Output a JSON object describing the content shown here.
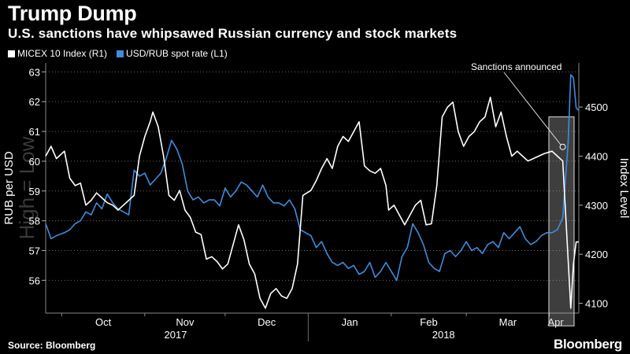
{
  "header": {
    "title": "Trump Dump",
    "subtitle": "U.S. sanctions have whipsawed Russian currency and stock markets"
  },
  "footer": {
    "source": "Source: Bloomberg",
    "brand": "Bloomberg"
  },
  "colors": {
    "micex": "#ffffff",
    "usdrub": "#3f8ddb",
    "highlight": "#b3b3b3",
    "grid": "#666666"
  },
  "chart_data": {
    "type": "line",
    "title": "Trump Dump",
    "subtitle": "U.S. sanctions have whipsawed Russian currency and stock markets",
    "ylabel_left": "RUB per USD",
    "ylabel_right": "Index Level",
    "ylabel_left_watermark": "High = Low",
    "ylim_left": [
      63.3,
      54.9
    ],
    "ylim_right": [
      4080,
      4590
    ],
    "yticks_left": [
      56,
      57,
      58,
      59,
      60,
      61,
      62,
      63
    ],
    "yticks_right": [
      4100,
      4200,
      4300,
      4400,
      4500
    ],
    "x_range": [
      "2017-09-25",
      "2018-04-12"
    ],
    "month_ticks": [
      {
        "label": "Oct",
        "date": "2017-10-01"
      },
      {
        "label": "Nov",
        "date": "2017-11-01"
      },
      {
        "label": "Dec",
        "date": "2017-12-01"
      },
      {
        "label": "Jan",
        "date": "2018-01-01"
      },
      {
        "label": "Feb",
        "date": "2018-02-01"
      },
      {
        "label": "Mar",
        "date": "2018-03-01"
      },
      {
        "label": "Apr",
        "date": "2018-04-01"
      }
    ],
    "years": [
      {
        "label": "2017",
        "from": "2017-09-25",
        "to": "2017-12-31"
      },
      {
        "label": "2018",
        "from": "2018-01-01",
        "to": "2018-04-12"
      }
    ],
    "grid": "dotted horizontal",
    "legend": "top-left",
    "annotation": {
      "text": "Sanctions announced",
      "date": "2018-04-06",
      "micex_value": 4390,
      "highlight_from": "2018-04-02",
      "highlight_to": "2018-04-12"
    },
    "series": [
      {
        "name": "MICEX 10 Index (R1)",
        "axis": "right",
        "points": [
          [
            "2017-09-25",
            4400
          ],
          [
            "2017-09-27",
            4420
          ],
          [
            "2017-09-29",
            4395
          ],
          [
            "2017-10-02",
            4410
          ],
          [
            "2017-10-04",
            4355
          ],
          [
            "2017-10-06",
            4340
          ],
          [
            "2017-10-08",
            4345
          ],
          [
            "2017-10-10",
            4300
          ],
          [
            "2017-10-12",
            4310
          ],
          [
            "2017-10-14",
            4325
          ],
          [
            "2017-10-16",
            4315
          ],
          [
            "2017-10-18",
            4305
          ],
          [
            "2017-10-20",
            4300
          ],
          [
            "2017-10-22",
            4290
          ],
          [
            "2017-10-24",
            4300
          ],
          [
            "2017-10-26",
            4310
          ],
          [
            "2017-10-28",
            4320
          ],
          [
            "2017-10-30",
            4400
          ],
          [
            "2017-11-01",
            4440
          ],
          [
            "2017-11-03",
            4470
          ],
          [
            "2017-11-04",
            4490
          ],
          [
            "2017-11-06",
            4460
          ],
          [
            "2017-11-08",
            4400
          ],
          [
            "2017-11-10",
            4320
          ],
          [
            "2017-11-12",
            4310
          ],
          [
            "2017-11-14",
            4330
          ],
          [
            "2017-11-16",
            4290
          ],
          [
            "2017-11-18",
            4275
          ],
          [
            "2017-11-20",
            4245
          ],
          [
            "2017-11-22",
            4240
          ],
          [
            "2017-11-24",
            4190
          ],
          [
            "2017-11-26",
            4195
          ],
          [
            "2017-11-28",
            4185
          ],
          [
            "2017-11-30",
            4170
          ],
          [
            "2017-12-02",
            4180
          ],
          [
            "2017-12-04",
            4220
          ],
          [
            "2017-12-06",
            4260
          ],
          [
            "2017-12-08",
            4230
          ],
          [
            "2017-12-10",
            4180
          ],
          [
            "2017-12-12",
            4160
          ],
          [
            "2017-12-14",
            4110
          ],
          [
            "2017-12-16",
            4090
          ],
          [
            "2017-12-18",
            4120
          ],
          [
            "2017-12-20",
            4130
          ],
          [
            "2017-12-22",
            4115
          ],
          [
            "2017-12-24",
            4110
          ],
          [
            "2017-12-26",
            4130
          ],
          [
            "2017-12-28",
            4180
          ],
          [
            "2017-12-30",
            4320
          ],
          [
            "2018-01-02",
            4330
          ],
          [
            "2018-01-04",
            4350
          ],
          [
            "2018-01-06",
            4375
          ],
          [
            "2018-01-08",
            4395
          ],
          [
            "2018-01-10",
            4375
          ],
          [
            "2018-01-12",
            4420
          ],
          [
            "2018-01-14",
            4440
          ],
          [
            "2018-01-16",
            4430
          ],
          [
            "2018-01-18",
            4450
          ],
          [
            "2018-01-20",
            4470
          ],
          [
            "2018-01-22",
            4380
          ],
          [
            "2018-01-24",
            4370
          ],
          [
            "2018-01-26",
            4365
          ],
          [
            "2018-01-28",
            4375
          ],
          [
            "2018-01-30",
            4340
          ],
          [
            "2018-01-31",
            4290
          ],
          [
            "2018-02-02",
            4300
          ],
          [
            "2018-02-04",
            4280
          ],
          [
            "2018-02-06",
            4260
          ],
          [
            "2018-02-08",
            4280
          ],
          [
            "2018-02-10",
            4300
          ],
          [
            "2018-02-12",
            4310
          ],
          [
            "2018-02-14",
            4260
          ],
          [
            "2018-02-16",
            4262
          ],
          [
            "2018-02-18",
            4340
          ],
          [
            "2018-02-20",
            4480
          ],
          [
            "2018-02-22",
            4500
          ],
          [
            "2018-02-24",
            4510
          ],
          [
            "2018-02-26",
            4450
          ],
          [
            "2018-02-28",
            4420
          ],
          [
            "2018-03-02",
            4440
          ],
          [
            "2018-03-04",
            4450
          ],
          [
            "2018-03-06",
            4470
          ],
          [
            "2018-03-08",
            4480
          ],
          [
            "2018-03-10",
            4520
          ],
          [
            "2018-03-12",
            4460
          ],
          [
            "2018-03-14",
            4490
          ],
          [
            "2018-03-16",
            4440
          ],
          [
            "2018-03-18",
            4400
          ],
          [
            "2018-03-20",
            4410
          ],
          [
            "2018-03-22",
            4400
          ],
          [
            "2018-03-24",
            4390
          ],
          [
            "2018-03-26",
            4395
          ],
          [
            "2018-03-28",
            4400
          ],
          [
            "2018-03-30",
            4405
          ],
          [
            "2018-04-02",
            4410
          ],
          [
            "2018-04-04",
            4400
          ],
          [
            "2018-04-06",
            4390
          ],
          [
            "2018-04-09",
            4090
          ],
          [
            "2018-04-10",
            4180
          ],
          [
            "2018-04-11",
            4225
          ],
          [
            "2018-04-12",
            4225
          ]
        ]
      },
      {
        "name": "USD/RUB spot rate (L1)",
        "axis": "left",
        "points": [
          [
            "2017-09-25",
            57.9
          ],
          [
            "2017-09-27",
            57.4
          ],
          [
            "2017-09-29",
            57.5
          ],
          [
            "2017-10-02",
            57.6
          ],
          [
            "2017-10-04",
            57.7
          ],
          [
            "2017-10-06",
            57.9
          ],
          [
            "2017-10-08",
            58.0
          ],
          [
            "2017-10-10",
            58.3
          ],
          [
            "2017-10-12",
            58.2
          ],
          [
            "2017-10-14",
            58.6
          ],
          [
            "2017-10-16",
            58.4
          ],
          [
            "2017-10-18",
            58.9
          ],
          [
            "2017-10-20",
            58.6
          ],
          [
            "2017-10-22",
            58.4
          ],
          [
            "2017-10-24",
            58.3
          ],
          [
            "2017-10-26",
            58.2
          ],
          [
            "2017-10-28",
            59.7
          ],
          [
            "2017-10-30",
            59.5
          ],
          [
            "2017-11-01",
            59.6
          ],
          [
            "2017-11-03",
            59.2
          ],
          [
            "2017-11-05",
            59.4
          ],
          [
            "2017-11-07",
            59.6
          ],
          [
            "2017-11-09",
            60.1
          ],
          [
            "2017-11-11",
            60.7
          ],
          [
            "2017-11-13",
            60.4
          ],
          [
            "2017-11-15",
            59.9
          ],
          [
            "2017-11-17",
            59.0
          ],
          [
            "2017-11-19",
            58.7
          ],
          [
            "2017-11-21",
            58.8
          ],
          [
            "2017-11-23",
            58.6
          ],
          [
            "2017-11-25",
            58.7
          ],
          [
            "2017-11-27",
            58.7
          ],
          [
            "2017-11-29",
            58.5
          ],
          [
            "2017-12-01",
            59.1
          ],
          [
            "2017-12-03",
            58.8
          ],
          [
            "2017-12-05",
            59.0
          ],
          [
            "2017-12-07",
            59.3
          ],
          [
            "2017-12-09",
            59.2
          ],
          [
            "2017-12-11",
            59.0
          ],
          [
            "2017-12-13",
            58.8
          ],
          [
            "2017-12-15",
            59.2
          ],
          [
            "2017-12-17",
            58.8
          ],
          [
            "2017-12-19",
            58.6
          ],
          [
            "2017-12-21",
            58.6
          ],
          [
            "2017-12-23",
            58.5
          ],
          [
            "2017-12-25",
            58.7
          ],
          [
            "2017-12-27",
            58.4
          ],
          [
            "2017-12-29",
            57.7
          ],
          [
            "2017-12-31",
            57.6
          ],
          [
            "2018-01-02",
            57.5
          ],
          [
            "2018-01-04",
            57.1
          ],
          [
            "2018-01-06",
            57.3
          ],
          [
            "2018-01-08",
            56.9
          ],
          [
            "2018-01-10",
            56.6
          ],
          [
            "2018-01-12",
            56.5
          ],
          [
            "2018-01-14",
            56.6
          ],
          [
            "2018-01-16",
            56.4
          ],
          [
            "2018-01-18",
            56.5
          ],
          [
            "2018-01-20",
            56.2
          ],
          [
            "2018-01-22",
            56.3
          ],
          [
            "2018-01-24",
            56.6
          ],
          [
            "2018-01-26",
            56.1
          ],
          [
            "2018-01-28",
            56.3
          ],
          [
            "2018-01-30",
            56.6
          ],
          [
            "2018-02-01",
            56.3
          ],
          [
            "2018-02-03",
            56.0
          ],
          [
            "2018-02-05",
            56.8
          ],
          [
            "2018-02-07",
            57.1
          ],
          [
            "2018-02-09",
            57.9
          ],
          [
            "2018-02-11",
            57.6
          ],
          [
            "2018-02-13",
            57.2
          ],
          [
            "2018-02-15",
            56.6
          ],
          [
            "2018-02-17",
            56.4
          ],
          [
            "2018-02-19",
            56.3
          ],
          [
            "2018-02-21",
            56.9
          ],
          [
            "2018-02-23",
            57.0
          ],
          [
            "2018-02-25",
            56.8
          ],
          [
            "2018-02-27",
            57.0
          ],
          [
            "2018-03-01",
            57.3
          ],
          [
            "2018-03-03",
            57.0
          ],
          [
            "2018-03-05",
            57.1
          ],
          [
            "2018-03-07",
            56.9
          ],
          [
            "2018-03-09",
            57.2
          ],
          [
            "2018-03-11",
            57.3
          ],
          [
            "2018-03-13",
            57.1
          ],
          [
            "2018-03-15",
            57.6
          ],
          [
            "2018-03-17",
            57.4
          ],
          [
            "2018-03-19",
            57.6
          ],
          [
            "2018-03-21",
            57.8
          ],
          [
            "2018-03-23",
            57.4
          ],
          [
            "2018-03-25",
            57.2
          ],
          [
            "2018-03-27",
            57.3
          ],
          [
            "2018-03-29",
            57.5
          ],
          [
            "2018-03-31",
            57.6
          ],
          [
            "2018-04-02",
            57.6
          ],
          [
            "2018-04-04",
            57.7
          ],
          [
            "2018-04-06",
            58.1
          ],
          [
            "2018-04-08",
            60.6
          ],
          [
            "2018-04-09",
            62.9
          ],
          [
            "2018-04-10",
            62.8
          ],
          [
            "2018-04-11",
            61.8
          ],
          [
            "2018-04-12",
            61.7
          ]
        ]
      }
    ]
  }
}
